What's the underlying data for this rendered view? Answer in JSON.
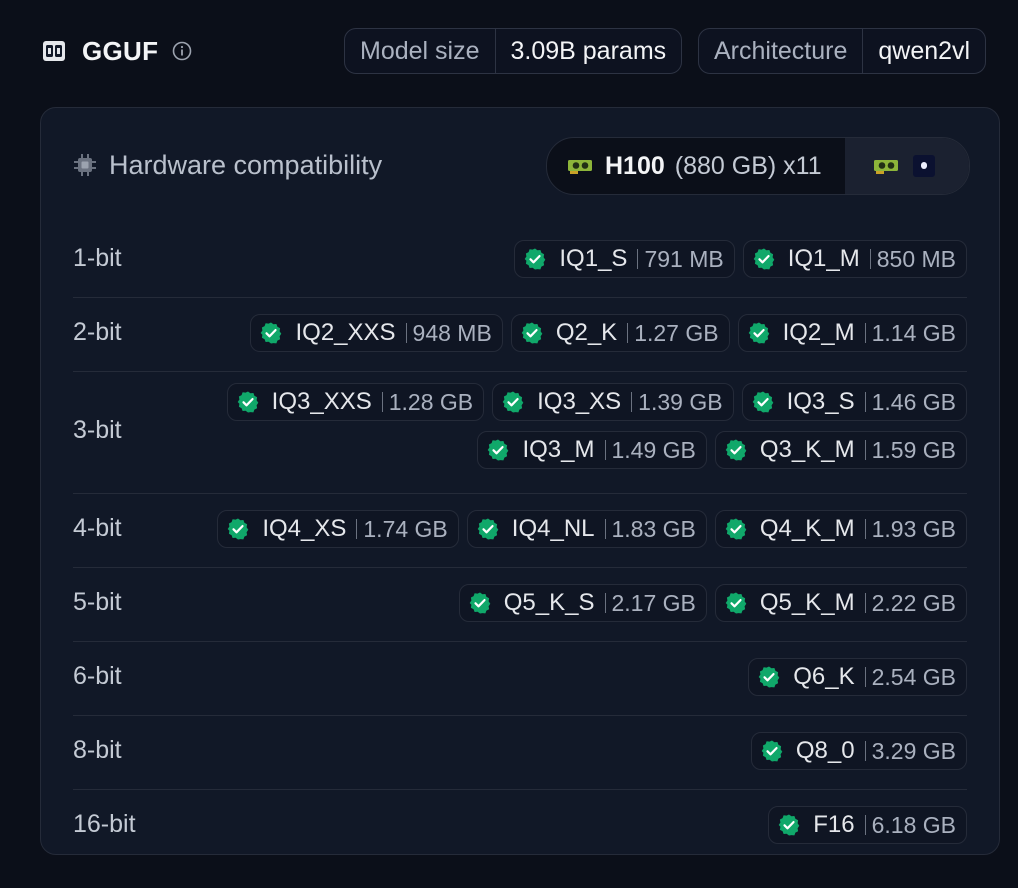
{
  "header": {
    "title": "GGUF",
    "model_size": {
      "label": "Model size",
      "value": "3.09B params"
    },
    "architecture": {
      "label": "Architecture",
      "value": "qwen2vl"
    }
  },
  "hardware": {
    "title": "Hardware compatibility",
    "selected_gpu": {
      "model": "H100",
      "memory": "(880 GB) x11"
    }
  },
  "rows": [
    {
      "bit": "1-bit",
      "lines": [
        [
          {
            "name": "IQ1_S",
            "size": "791 MB"
          },
          {
            "name": "IQ1_M",
            "size": "850 MB"
          }
        ]
      ]
    },
    {
      "bit": "2-bit",
      "lines": [
        [
          {
            "name": "IQ2_XXS",
            "size": "948 MB"
          },
          {
            "name": "Q2_K",
            "size": "1.27 GB"
          },
          {
            "name": "IQ2_M",
            "size": "1.14 GB"
          }
        ]
      ]
    },
    {
      "bit": "3-bit",
      "lines": [
        [
          {
            "name": "IQ3_XXS",
            "size": "1.28 GB"
          },
          {
            "name": "IQ3_XS",
            "size": "1.39 GB"
          },
          {
            "name": "IQ3_S",
            "size": "1.46 GB"
          }
        ],
        [
          {
            "name": "IQ3_M",
            "size": "1.49 GB"
          },
          {
            "name": "Q3_K_M",
            "size": "1.59 GB"
          }
        ]
      ]
    },
    {
      "bit": "4-bit",
      "lines": [
        [
          {
            "name": "IQ4_XS",
            "size": "1.74 GB"
          },
          {
            "name": "IQ4_NL",
            "size": "1.83 GB"
          },
          {
            "name": "Q4_K_M",
            "size": "1.93 GB"
          }
        ]
      ]
    },
    {
      "bit": "5-bit",
      "lines": [
        [
          {
            "name": "Q5_K_S",
            "size": "2.17 GB"
          },
          {
            "name": "Q5_K_M",
            "size": "2.22 GB"
          }
        ]
      ]
    },
    {
      "bit": "6-bit",
      "lines": [
        [
          {
            "name": "Q6_K",
            "size": "2.54 GB"
          }
        ]
      ]
    },
    {
      "bit": "8-bit",
      "lines": [
        [
          {
            "name": "Q8_0",
            "size": "3.29 GB"
          }
        ]
      ]
    },
    {
      "bit": "16-bit",
      "lines": [
        [
          {
            "name": "F16",
            "size": "6.18 GB"
          }
        ]
      ]
    }
  ],
  "colors": {
    "background": "#0b0f19",
    "panel": "#111827",
    "compatible_badge": "#10a86a",
    "border": "#252b39"
  },
  "icons": {
    "title": "gguf-icon",
    "info": "info-icon",
    "hardware": "chip-icon",
    "gpu": "gpu-icon",
    "apple": "apple-silicon-icon",
    "badge": "check-badge-icon"
  }
}
